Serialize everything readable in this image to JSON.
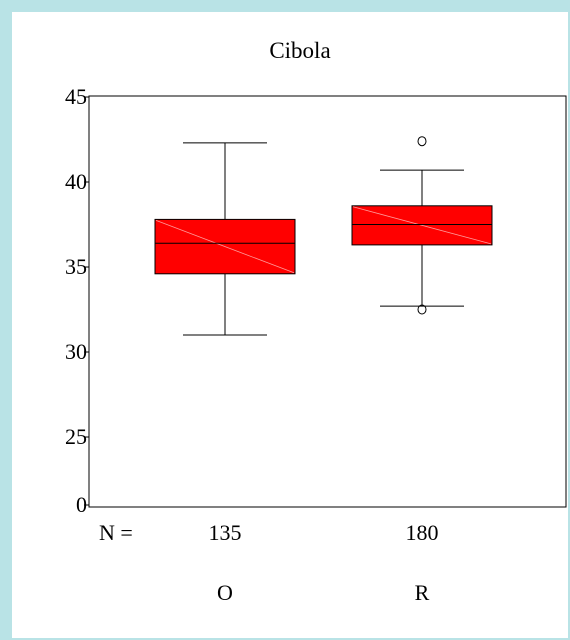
{
  "chart_data": {
    "type": "boxplot",
    "title": "Cibola",
    "xlabel": "",
    "ylabel": "",
    "y_ticks": [
      {
        "label": "0",
        "value": 0
      },
      {
        "label": "25",
        "value": 25
      },
      {
        "label": "30",
        "value": 30
      },
      {
        "label": "35",
        "value": 35
      },
      {
        "label": "40",
        "value": 40
      },
      {
        "label": "45",
        "value": 45
      }
    ],
    "n_label": "N =",
    "categories": [
      "O",
      "R"
    ],
    "boxes": [
      {
        "category": "O",
        "n": "135",
        "whisker_low": 31.0,
        "q1": 34.6,
        "median": 36.4,
        "q3": 37.8,
        "whisker_high": 42.3,
        "outliers": []
      },
      {
        "category": "R",
        "n": "180",
        "whisker_low": 32.7,
        "q1": 36.3,
        "median": 37.5,
        "q3": 38.6,
        "whisker_high": 40.7,
        "outliers": [
          42.4,
          32.5
        ]
      }
    ],
    "box_color": "#ff0000",
    "grid": false,
    "legend": "none"
  }
}
